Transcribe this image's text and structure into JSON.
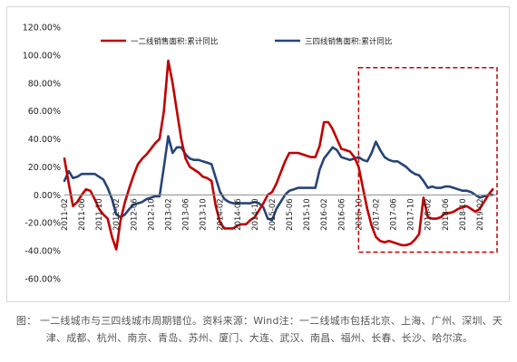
{
  "caption": "图：  一二线城市与三四线城市周期错位。资料来源：Wind注：一二线城市包括北京、上海、广州、深圳、天津、成都、杭州、南京、青岛、苏州、厦门、大连、武汉、南昌、福州、长春、长沙、哈尔滨。",
  "chart_data": {
    "type": "line",
    "title": "",
    "xlabel": "",
    "ylabel": "",
    "ylim": [
      -60,
      120
    ],
    "yticks": [
      -60,
      -40,
      -20,
      0,
      20,
      40,
      60,
      80,
      100,
      120
    ],
    "ytick_labels": [
      "-60.00%",
      "-40.00%",
      "-20.00%",
      "0.00%",
      "20.00%",
      "40.00%",
      "60.00%",
      "80.00%",
      "100.00%",
      "120.00%"
    ],
    "grid": false,
    "legend": "top",
    "x_range": [
      "2011-02",
      "2019-06"
    ],
    "xtick_labels": [
      "2011-02",
      "2011-06",
      "2011-10",
      "2012-02",
      "2012-06",
      "2012-10",
      "2013-02",
      "2013-06",
      "2013-10",
      "2014-02",
      "2014-06",
      "2014-10",
      "2015-02",
      "2015-06",
      "2015-10",
      "2016-02",
      "2016-06",
      "2016-10",
      "2017-02",
      "2017-06",
      "2017-10",
      "2018-02",
      "2018-06",
      "2018-10",
      "2019-02"
    ],
    "series": [
      {
        "name": "一二线销售面积:累计同比",
        "color": "#c00000",
        "points": [
          [
            "2011-02",
            26
          ],
          [
            "2011-03",
            8
          ],
          [
            "2011-04",
            -8
          ],
          [
            "2011-05",
            -5
          ],
          [
            "2011-06",
            0
          ],
          [
            "2011-07",
            4
          ],
          [
            "2011-08",
            3
          ],
          [
            "2011-09",
            -3
          ],
          [
            "2011-10",
            -10
          ],
          [
            "2011-11",
            -14
          ],
          [
            "2011-12",
            -17
          ],
          [
            "2012-01",
            -30
          ],
          [
            "2012-02",
            -39
          ],
          [
            "2012-03",
            -18
          ],
          [
            "2012-04",
            -5
          ],
          [
            "2012-05",
            5
          ],
          [
            "2012-06",
            14
          ],
          [
            "2012-07",
            22
          ],
          [
            "2012-08",
            26
          ],
          [
            "2012-09",
            29
          ],
          [
            "2012-10",
            33
          ],
          [
            "2012-11",
            37
          ],
          [
            "2012-12",
            40
          ],
          [
            "2013-01",
            60
          ],
          [
            "2013-02",
            96
          ],
          [
            "2013-03",
            80
          ],
          [
            "2013-04",
            60
          ],
          [
            "2013-05",
            40
          ],
          [
            "2013-06",
            26
          ],
          [
            "2013-07",
            20
          ],
          [
            "2013-08",
            18
          ],
          [
            "2013-09",
            16
          ],
          [
            "2013-10",
            13
          ],
          [
            "2013-11",
            12
          ],
          [
            "2013-12",
            10
          ],
          [
            "2014-01",
            -8
          ],
          [
            "2014-02",
            -20
          ],
          [
            "2014-03",
            -24
          ],
          [
            "2014-04",
            -24
          ],
          [
            "2014-05",
            -24
          ],
          [
            "2014-06",
            -22
          ],
          [
            "2014-07",
            -21
          ],
          [
            "2014-08",
            -21
          ],
          [
            "2014-09",
            -18
          ],
          [
            "2014-10",
            -16
          ],
          [
            "2014-11",
            -11
          ],
          [
            "2014-12",
            -6
          ],
          [
            "2015-01",
            0
          ],
          [
            "2015-02",
            2
          ],
          [
            "2015-03",
            8
          ],
          [
            "2015-04",
            16
          ],
          [
            "2015-05",
            24
          ],
          [
            "2015-06",
            30
          ],
          [
            "2015-07",
            30
          ],
          [
            "2015-08",
            30
          ],
          [
            "2015-09",
            29
          ],
          [
            "2015-10",
            28
          ],
          [
            "2015-11",
            27
          ],
          [
            "2015-12",
            27
          ],
          [
            "2016-01",
            35
          ],
          [
            "2016-02",
            52
          ],
          [
            "2016-03",
            52
          ],
          [
            "2016-04",
            47
          ],
          [
            "2016-05",
            40
          ],
          [
            "2016-06",
            33
          ],
          [
            "2016-07",
            32
          ],
          [
            "2016-08",
            31
          ],
          [
            "2016-09",
            27
          ],
          [
            "2016-10",
            20
          ],
          [
            "2016-11",
            5
          ],
          [
            "2016-12",
            -10
          ],
          [
            "2017-01",
            -22
          ],
          [
            "2017-02",
            -30
          ],
          [
            "2017-03",
            -33
          ],
          [
            "2017-04",
            -34
          ],
          [
            "2017-05",
            -33
          ],
          [
            "2017-06",
            -34
          ],
          [
            "2017-07",
            -35
          ],
          [
            "2017-08",
            -36
          ],
          [
            "2017-09",
            -36
          ],
          [
            "2017-10",
            -35
          ],
          [
            "2017-11",
            -32
          ],
          [
            "2017-12",
            -28
          ],
          [
            "2018-01",
            -2
          ],
          [
            "2018-02",
            -16
          ],
          [
            "2018-03",
            -17
          ],
          [
            "2018-04",
            -17
          ],
          [
            "2018-05",
            -16
          ],
          [
            "2018-06",
            -13
          ],
          [
            "2018-07",
            -13
          ],
          [
            "2018-08",
            -12
          ],
          [
            "2018-09",
            -10
          ],
          [
            "2018-10",
            -9
          ],
          [
            "2018-11",
            -8
          ],
          [
            "2018-12",
            -10
          ],
          [
            "2019-01",
            -12
          ],
          [
            "2019-02",
            -10
          ],
          [
            "2019-03",
            -5
          ],
          [
            "2019-04",
            0
          ],
          [
            "2019-05",
            4
          ]
        ]
      },
      {
        "name": "三四线销售面积:累计同比",
        "color": "#264478",
        "points": [
          [
            "2011-02",
            10
          ],
          [
            "2011-03",
            17
          ],
          [
            "2011-04",
            12
          ],
          [
            "2011-05",
            13
          ],
          [
            "2011-06",
            15
          ],
          [
            "2011-07",
            15
          ],
          [
            "2011-08",
            15
          ],
          [
            "2011-09",
            15
          ],
          [
            "2011-10",
            13
          ],
          [
            "2011-11",
            11
          ],
          [
            "2011-12",
            5
          ],
          [
            "2012-01",
            -3
          ],
          [
            "2012-02",
            -14
          ],
          [
            "2012-03",
            -16
          ],
          [
            "2012-04",
            -14
          ],
          [
            "2012-05",
            -10
          ],
          [
            "2012-06",
            -7
          ],
          [
            "2012-07",
            -6
          ],
          [
            "2012-08",
            -5
          ],
          [
            "2012-09",
            -3
          ],
          [
            "2012-10",
            -2
          ],
          [
            "2012-11",
            -1
          ],
          [
            "2012-12",
            -1
          ],
          [
            "2013-01",
            20
          ],
          [
            "2013-02",
            42
          ],
          [
            "2013-03",
            30
          ],
          [
            "2013-04",
            34
          ],
          [
            "2013-05",
            34
          ],
          [
            "2013-06",
            29
          ],
          [
            "2013-07",
            26
          ],
          [
            "2013-08",
            25
          ],
          [
            "2013-09",
            25
          ],
          [
            "2013-10",
            24
          ],
          [
            "2013-11",
            23
          ],
          [
            "2013-12",
            22
          ],
          [
            "2014-01",
            12
          ],
          [
            "2014-02",
            2
          ],
          [
            "2014-03",
            -3
          ],
          [
            "2014-04",
            -5
          ],
          [
            "2014-05",
            -6
          ],
          [
            "2014-06",
            -6
          ],
          [
            "2014-07",
            -6
          ],
          [
            "2014-08",
            -6
          ],
          [
            "2014-09",
            -6
          ],
          [
            "2014-10",
            -5
          ],
          [
            "2014-11",
            -6
          ],
          [
            "2014-12",
            -9
          ],
          [
            "2015-01",
            -17
          ],
          [
            "2015-02",
            -18
          ],
          [
            "2015-03",
            -10
          ],
          [
            "2015-04",
            -5
          ],
          [
            "2015-05",
            0
          ],
          [
            "2015-06",
            3
          ],
          [
            "2015-07",
            4
          ],
          [
            "2015-08",
            5
          ],
          [
            "2015-09",
            5
          ],
          [
            "2015-10",
            5
          ],
          [
            "2015-11",
            5
          ],
          [
            "2015-12",
            5
          ],
          [
            "2016-01",
            18
          ],
          [
            "2016-02",
            26
          ],
          [
            "2016-03",
            30
          ],
          [
            "2016-04",
            34
          ],
          [
            "2016-05",
            32
          ],
          [
            "2016-06",
            27
          ],
          [
            "2016-07",
            26
          ],
          [
            "2016-08",
            25
          ],
          [
            "2016-09",
            26
          ],
          [
            "2016-10",
            27
          ],
          [
            "2016-11",
            25
          ],
          [
            "2016-12",
            24
          ],
          [
            "2017-01",
            30
          ],
          [
            "2017-02",
            38
          ],
          [
            "2017-03",
            32
          ],
          [
            "2017-04",
            27
          ],
          [
            "2017-05",
            25
          ],
          [
            "2017-06",
            24
          ],
          [
            "2017-07",
            24
          ],
          [
            "2017-08",
            22
          ],
          [
            "2017-09",
            20
          ],
          [
            "2017-10",
            17
          ],
          [
            "2017-11",
            15
          ],
          [
            "2017-12",
            14
          ],
          [
            "2018-01",
            10
          ],
          [
            "2018-02",
            5
          ],
          [
            "2018-03",
            6
          ],
          [
            "2018-04",
            5
          ],
          [
            "2018-05",
            5
          ],
          [
            "2018-06",
            6
          ],
          [
            "2018-07",
            6
          ],
          [
            "2018-08",
            5
          ],
          [
            "2018-09",
            4
          ],
          [
            "2018-10",
            3
          ],
          [
            "2018-11",
            3
          ],
          [
            "2018-12",
            2
          ],
          [
            "2019-01",
            0
          ],
          [
            "2019-02",
            -2
          ],
          [
            "2019-03",
            -1
          ],
          [
            "2019-04",
            0
          ],
          [
            "2019-05",
            0
          ]
        ]
      }
    ],
    "annotations": [
      {
        "type": "dashed-box",
        "color": "#c00000",
        "x_from": "2016-10",
        "x_to": "2019-06",
        "y_from": -41,
        "y_to": 91
      }
    ]
  }
}
